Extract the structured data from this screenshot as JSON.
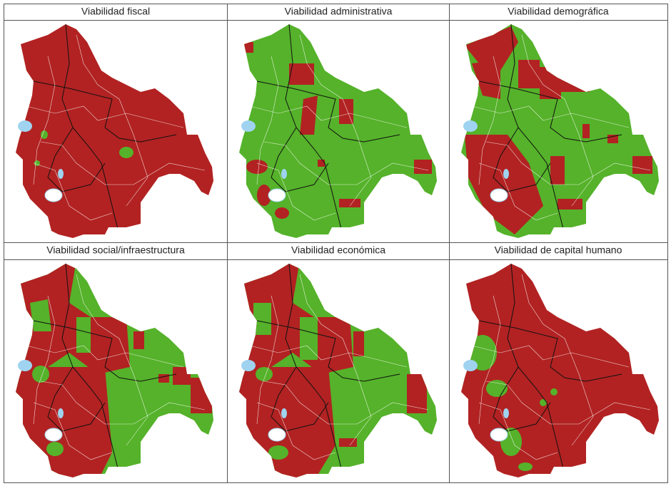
{
  "panels": [
    {
      "title": "Viabilidad fiscal"
    },
    {
      "title": "Viabilidad administrativa"
    },
    {
      "title": "Viabilidad demográfica"
    },
    {
      "title": "Viabilidad social/infraestructura"
    },
    {
      "title": "Viabilidad económica"
    },
    {
      "title": "Viabilidad de capital humano"
    }
  ]
}
